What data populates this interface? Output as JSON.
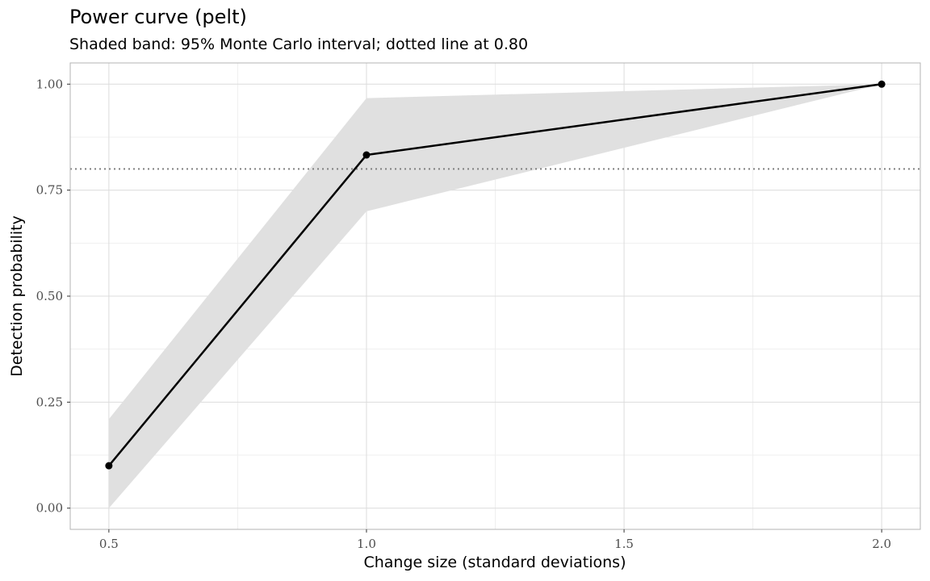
{
  "chart_data": {
    "type": "line",
    "title": "Power curve (pelt)",
    "subtitle": "Shaded band: 95% Monte Carlo interval; dotted line at 0.80",
    "xlabel": "Change size (standard deviations)",
    "ylabel": "Detection probability",
    "x": [
      0.5,
      1.0,
      2.0
    ],
    "series": [
      {
        "values": [
          0.1,
          0.833,
          1.0
        ]
      }
    ],
    "band": {
      "lower": [
        0.0,
        0.7,
        1.0
      ],
      "upper": [
        0.21,
        0.967,
        1.0
      ]
    },
    "reference_line": {
      "y": 0.8
    },
    "xlim": [
      0.425,
      2.075
    ],
    "ylim": [
      -0.05,
      1.05
    ],
    "x_ticks": [
      0.5,
      1.0,
      1.5,
      2.0
    ],
    "x_tick_labels": [
      "0.5",
      "1.0",
      "1.5",
      "2.0"
    ],
    "y_ticks": [
      0.0,
      0.25,
      0.5,
      0.75,
      1.0
    ],
    "y_tick_labels": [
      "0.00",
      "0.25",
      "0.50",
      "0.75",
      "1.00"
    ],
    "grid": true,
    "legend": "none",
    "colors": {
      "line": "#000000",
      "band": "#e0e0e0",
      "reference": "#808080",
      "grid_major": "#dcdcdc",
      "grid_minor": "#efefef",
      "panel_border": "#b3b3b3"
    }
  }
}
